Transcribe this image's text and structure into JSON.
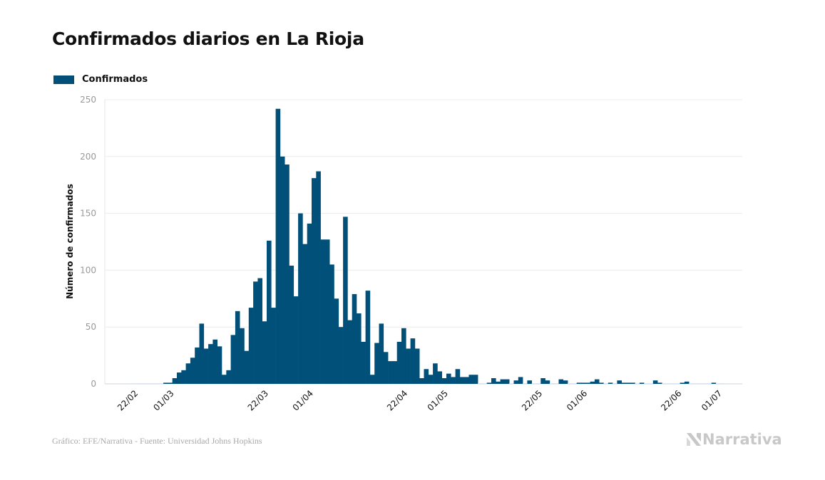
{
  "chart_data": {
    "type": "bar",
    "title": "Confirmados diarios en La Rioja",
    "xlabel": "",
    "ylabel": "Número de confirmados",
    "ylim": [
      0,
      250
    ],
    "yticks": [
      0,
      50,
      100,
      150,
      200,
      250
    ],
    "grid": true,
    "legend": {
      "position": "top-left",
      "entries": [
        "Confirmados"
      ]
    },
    "start_date": "22/02",
    "xtick_labels": [
      {
        "label": "22/02",
        "day_index": 0
      },
      {
        "label": "01/03",
        "day_index": 8
      },
      {
        "label": "22/03",
        "day_index": 29
      },
      {
        "label": "01/04",
        "day_index": 39
      },
      {
        "label": "22/04",
        "day_index": 60
      },
      {
        "label": "01/05",
        "day_index": 69
      },
      {
        "label": "22/05",
        "day_index": 90
      },
      {
        "label": "01/06",
        "day_index": 100
      },
      {
        "label": "22/06",
        "day_index": 121
      },
      {
        "label": "01/07",
        "day_index": 130
      }
    ],
    "series": [
      {
        "name": "Confirmados",
        "color": "#00507a",
        "values": [
          0,
          0,
          0,
          0,
          0,
          0,
          0,
          1,
          1,
          5,
          10,
          12,
          18,
          23,
          32,
          53,
          31,
          35,
          39,
          33,
          8,
          12,
          43,
          64,
          49,
          29,
          67,
          90,
          93,
          55,
          126,
          67,
          242,
          200,
          193,
          104,
          77,
          150,
          123,
          141,
          181,
          187,
          127,
          127,
          105,
          75,
          50,
          147,
          56,
          79,
          62,
          37,
          82,
          8,
          36,
          53,
          28,
          20,
          20,
          37,
          49,
          31,
          40,
          31,
          5,
          13,
          8,
          18,
          11,
          5,
          9,
          6,
          13,
          6,
          6,
          8,
          8,
          0,
          0,
          1,
          5,
          2,
          4,
          4,
          0,
          3,
          6,
          0,
          3,
          0,
          0,
          5,
          3,
          0,
          0,
          4,
          3,
          0,
          0,
          1,
          1,
          1,
          2,
          4,
          1,
          0,
          1,
          0,
          3,
          1,
          1,
          1,
          0,
          1,
          0,
          0,
          3,
          1,
          0,
          0,
          0,
          0,
          1,
          2,
          0,
          0,
          0,
          0,
          0,
          1,
          0,
          0
        ]
      }
    ]
  },
  "footer": {
    "source": "Gráfico: EFE/Narrativa - Fuente: Universidad Johns Hopkins",
    "brand": "Narrativa"
  }
}
